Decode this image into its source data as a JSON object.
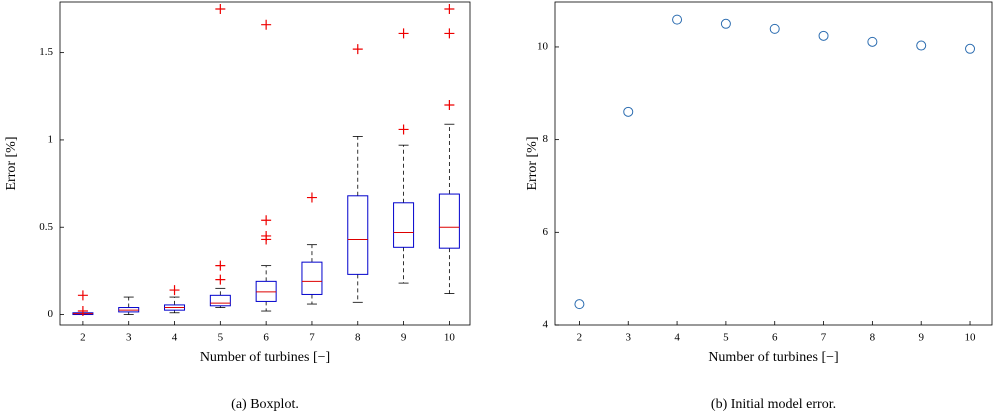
{
  "chart_data": [
    {
      "type": "box",
      "caption": "(a) Boxplot.",
      "xlabel": "Number of turbines [−]",
      "ylabel": "Error [%]",
      "x": [
        2,
        3,
        4,
        5,
        6,
        7,
        8,
        9,
        10
      ],
      "xlim": [
        1.5,
        10.45
      ],
      "xticks": [
        2,
        3,
        4,
        5,
        6,
        7,
        8,
        9,
        10
      ],
      "ylim": [
        -0.06,
        1.79
      ],
      "yticks": [
        0,
        0.5,
        1,
        1.5
      ],
      "box_color": "#0000cc",
      "median_color": "#dd0000",
      "whisker_color": "#000000",
      "flier_color": "#ee0000",
      "boxes": [
        {
          "whislo": 0,
          "q1": 0,
          "med": 0.005,
          "q3": 0.01,
          "whishi": 0.02,
          "fliers": [
            0.02,
            0.11
          ]
        },
        {
          "whislo": 0,
          "q1": 0.015,
          "med": 0.025,
          "q3": 0.04,
          "whishi": 0.1,
          "fliers": []
        },
        {
          "whislo": 0.01,
          "q1": 0.025,
          "med": 0.04,
          "q3": 0.055,
          "whishi": 0.1,
          "fliers": [
            0.14
          ]
        },
        {
          "whislo": 0.04,
          "q1": 0.05,
          "med": 0.065,
          "q3": 0.11,
          "whishi": 0.15,
          "fliers": [
            0.2,
            0.28,
            1.75
          ]
        },
        {
          "whislo": 0.02,
          "q1": 0.075,
          "med": 0.13,
          "q3": 0.19,
          "whishi": 0.28,
          "fliers": [
            0.43,
            0.45,
            0.54,
            1.66
          ]
        },
        {
          "whislo": 0.06,
          "q1": 0.115,
          "med": 0.19,
          "q3": 0.3,
          "whishi": 0.4,
          "fliers": [
            0.67
          ]
        },
        {
          "whislo": 0.07,
          "q1": 0.23,
          "med": 0.43,
          "q3": 0.68,
          "whishi": 1.02,
          "fliers": [
            1.52
          ]
        },
        {
          "whislo": 0.18,
          "q1": 0.385,
          "med": 0.47,
          "q3": 0.64,
          "whishi": 0.97,
          "fliers": [
            1.06,
            1.61
          ]
        },
        {
          "whislo": 0.12,
          "q1": 0.38,
          "med": 0.5,
          "q3": 0.69,
          "whishi": 1.09,
          "fliers": [
            1.2,
            1.61,
            1.75
          ]
        }
      ]
    },
    {
      "type": "scatter",
      "caption": "(b) Initial model error.",
      "xlabel": "Number of turbines [−]",
      "ylabel": "Error [%]",
      "x": [
        2,
        3,
        4,
        5,
        6,
        7,
        8,
        9,
        10
      ],
      "values": [
        4.45,
        8.6,
        10.59,
        10.5,
        10.39,
        10.24,
        10.11,
        10.03,
        9.96
      ],
      "color": "#2b6cb0",
      "xlim": [
        1.5,
        10.45
      ],
      "xticks": [
        2,
        3,
        4,
        5,
        6,
        7,
        8,
        9,
        10
      ],
      "ylim": [
        4,
        10.97
      ],
      "yticks": [
        4,
        6,
        8,
        10
      ]
    }
  ]
}
